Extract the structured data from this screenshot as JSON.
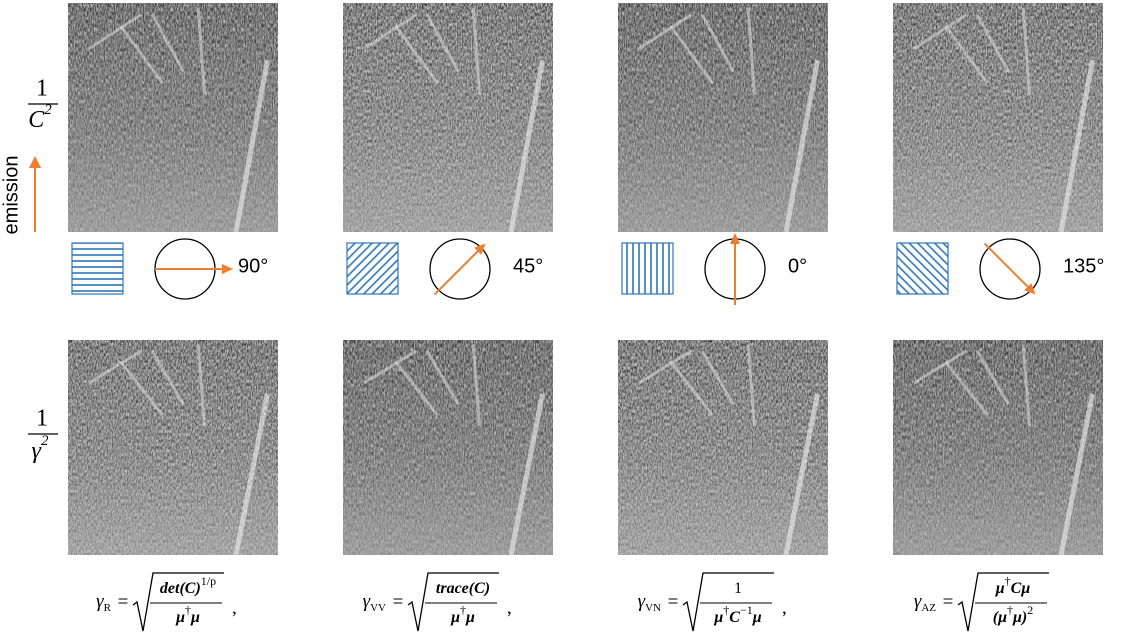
{
  "emission": "emission",
  "row_labels": [
    {
      "numerator": "1",
      "denominator": "C",
      "sup": "2"
    },
    {
      "numerator": "1",
      "denominator": "γ",
      "sup": "2"
    }
  ],
  "polarizations": [
    {
      "value": 90,
      "label": "90°"
    },
    {
      "value": 45,
      "label": "45°"
    },
    {
      "value": 0,
      "label": "0°"
    },
    {
      "value": 135,
      "label": "135°"
    }
  ],
  "formulas": [
    {
      "symbol": "γ",
      "sub": "R",
      "relation": "=",
      "trailing": ",",
      "numerator": [
        {
          "t": "det(C)"
        },
        {
          "t": "1/p",
          "sup": true
        }
      ],
      "denominator": [
        {
          "t": "μ"
        },
        {
          "t": "†",
          "sup": true
        },
        {
          "t": "μ"
        }
      ]
    },
    {
      "symbol": "γ",
      "sub": "VV",
      "relation": "=",
      "trailing": ",",
      "numerator": [
        {
          "t": "trace(C)"
        }
      ],
      "denominator": [
        {
          "t": "μ"
        },
        {
          "t": "†",
          "sup": true
        },
        {
          "t": "μ"
        }
      ]
    },
    {
      "symbol": "γ",
      "sub": "VN",
      "relation": "=",
      "trailing": ",",
      "numerator": [
        {
          "t": "1"
        }
      ],
      "denominator": [
        {
          "t": "μ"
        },
        {
          "t": "†",
          "sup": true
        },
        {
          "t": "C"
        },
        {
          "t": "−1",
          "sup": true
        },
        {
          "t": "μ"
        }
      ]
    },
    {
      "symbol": "γ",
      "sub": "AZ",
      "relation": "=",
      "trailing": "",
      "numerator": [
        {
          "t": "μ"
        },
        {
          "t": "†",
          "sup": true
        },
        {
          "t": "Cμ"
        }
      ],
      "denominator": [
        {
          "t": "(μ"
        },
        {
          "t": "†",
          "sup": true
        },
        {
          "t": "μ)"
        },
        {
          "t": "2",
          "sup": true
        }
      ]
    }
  ]
}
